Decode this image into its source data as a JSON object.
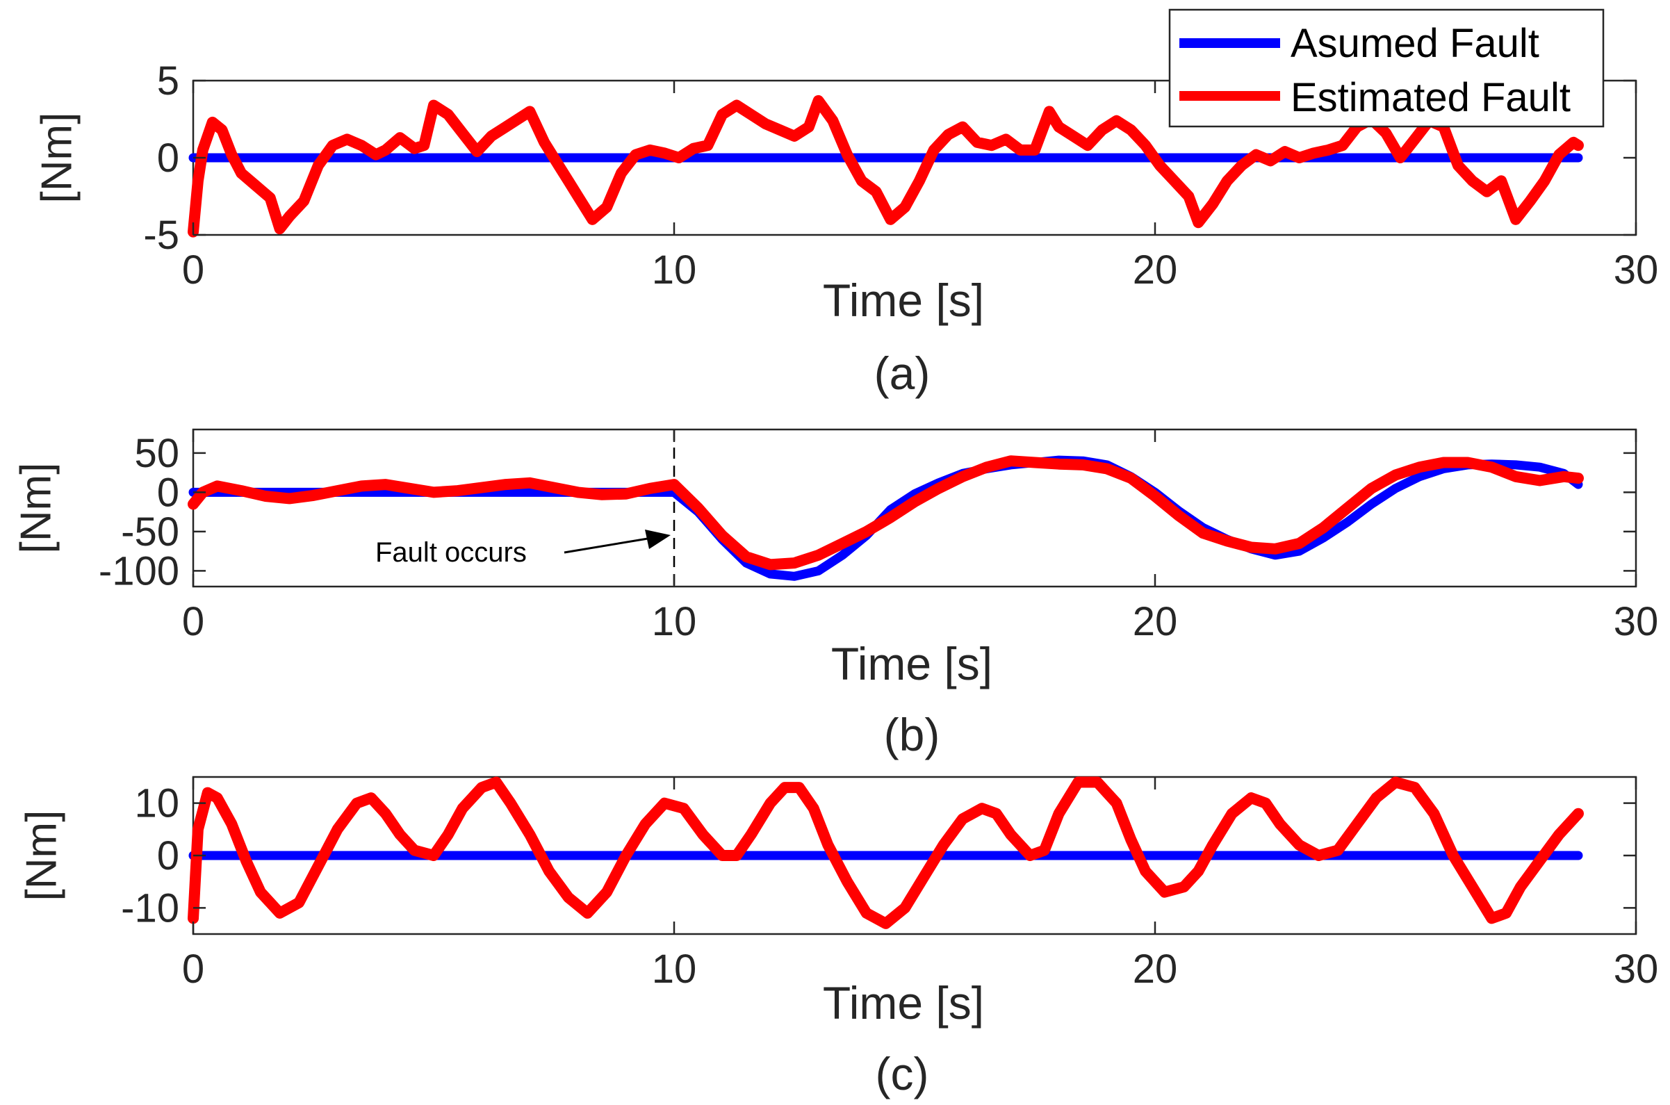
{
  "legend": {
    "entries": [
      {
        "label": "Asumed Fault",
        "color": "#0000ff"
      },
      {
        "label": "Estimated Fault",
        "color": "#ff0000"
      }
    ]
  },
  "chart_data": [
    {
      "type": "line",
      "caption": "(a)",
      "xlabel": "Time [s]",
      "ylabel": "[Nm]",
      "xlim": [
        0,
        30
      ],
      "ylim": [
        -5,
        5
      ],
      "xticks": [
        0,
        10,
        20,
        30
      ],
      "yticks": [
        5,
        0,
        -5
      ],
      "series": [
        {
          "name": "Asumed Fault",
          "color": "#0000ff",
          "x": [
            0,
            28.8
          ],
          "y": [
            0,
            0
          ]
        },
        {
          "name": "Estimated Fault",
          "color": "#ff0000",
          "x": [
            0,
            0.1,
            0.2,
            0.4,
            0.6,
            0.8,
            1.0,
            1.3,
            1.6,
            1.8,
            2.0,
            2.3,
            2.6,
            2.9,
            3.2,
            3.5,
            3.8,
            4.0,
            4.3,
            4.6,
            4.8,
            5.0,
            5.3,
            5.6,
            5.9,
            6.2,
            6.5,
            6.8,
            7.0,
            7.3,
            7.6,
            7.8,
            8.0,
            8.3,
            8.6,
            8.9,
            9.2,
            9.5,
            9.8,
            10.1,
            10.4,
            10.7,
            11.0,
            11.3,
            11.6,
            11.9,
            12.2,
            12.5,
            12.8,
            13.0,
            13.3,
            13.6,
            13.9,
            14.2,
            14.5,
            14.8,
            15.1,
            15.4,
            15.7,
            16.0,
            16.3,
            16.6,
            16.9,
            17.2,
            17.5,
            17.8,
            18.0,
            18.3,
            18.6,
            18.9,
            19.2,
            19.5,
            19.8,
            20.1,
            20.4,
            20.7,
            20.9,
            21.2,
            21.5,
            21.8,
            22.1,
            22.4,
            22.7,
            23.0,
            23.3,
            23.6,
            23.9,
            24.2,
            24.5,
            24.8,
            25.1,
            25.4,
            25.7,
            26.0,
            26.3,
            26.6,
            26.9,
            27.2,
            27.5,
            27.8,
            28.1,
            28.4,
            28.7,
            28.8
          ],
          "y": [
            -4.8,
            -1.5,
            0.5,
            2.3,
            1.8,
            0.2,
            -1.0,
            -1.8,
            -2.6,
            -4.6,
            -3.8,
            -2.8,
            -0.5,
            0.8,
            1.2,
            0.8,
            0.2,
            0.5,
            1.3,
            0.6,
            0.8,
            3.4,
            2.8,
            1.6,
            0.4,
            1.4,
            2.0,
            2.6,
            3.0,
            1.0,
            -0.5,
            -1.5,
            -2.5,
            -4.0,
            -3.2,
            -1.0,
            0.2,
            0.5,
            0.3,
            0.0,
            0.6,
            0.8,
            2.8,
            3.4,
            2.8,
            2.2,
            1.8,
            1.4,
            2.0,
            3.7,
            2.4,
            0.2,
            -1.5,
            -2.2,
            -4.0,
            -3.2,
            -1.5,
            0.5,
            1.5,
            2.0,
            1.0,
            0.8,
            1.2,
            0.5,
            0.5,
            3.0,
            2.0,
            1.4,
            0.8,
            1.8,
            2.4,
            1.8,
            0.8,
            -0.5,
            -1.5,
            -2.5,
            -4.2,
            -3.0,
            -1.5,
            -0.5,
            0.2,
            -0.2,
            0.4,
            0.0,
            0.3,
            0.5,
            0.8,
            2.0,
            2.5,
            1.6,
            0.0,
            1.2,
            2.4,
            2.0,
            -0.5,
            -1.5,
            -2.2,
            -1.5,
            -4.0,
            -2.8,
            -1.5,
            0.2,
            1.0,
            0.8
          ]
        }
      ]
    },
    {
      "type": "line",
      "caption": "(b)",
      "xlabel": "Time [s]",
      "ylabel": "[Nm]",
      "xlim": [
        0,
        30
      ],
      "ylim": [
        -120,
        80
      ],
      "xticks": [
        0,
        10,
        20,
        30
      ],
      "yticks": [
        50,
        0,
        -50,
        -100
      ],
      "annotation": {
        "text": "Fault occurs",
        "x": 10,
        "y": -60
      },
      "series": [
        {
          "name": "Asumed Fault",
          "color": "#0000ff",
          "x": [
            0,
            10,
            10.5,
            11,
            11.5,
            12,
            12.5,
            13,
            13.5,
            14,
            14.5,
            15,
            15.5,
            16,
            16.5,
            17,
            17.5,
            18,
            18.5,
            19,
            19.5,
            20,
            20.5,
            21,
            21.5,
            22,
            22.5,
            23,
            23.5,
            24,
            24.5,
            25,
            25.5,
            26,
            26.5,
            27,
            27.5,
            28,
            28.5,
            28.8
          ],
          "y": [
            0,
            0,
            -25,
            -60,
            -90,
            -104,
            -107,
            -100,
            -80,
            -55,
            -22,
            -2,
            12,
            24,
            30,
            35,
            38,
            41,
            40,
            35,
            20,
            0,
            -24,
            -45,
            -60,
            -72,
            -80,
            -75,
            -58,
            -38,
            -15,
            5,
            20,
            30,
            35,
            36,
            35,
            32,
            24,
            10
          ]
        },
        {
          "name": "Estimated Fault",
          "color": "#ff0000",
          "x": [
            0,
            0.2,
            0.5,
            1.0,
            1.5,
            2.0,
            2.5,
            3.0,
            3.5,
            4.0,
            4.5,
            5.0,
            5.5,
            6.0,
            6.5,
            7.0,
            7.5,
            8.0,
            8.5,
            9.0,
            9.5,
            10.0,
            10.5,
            11.0,
            11.5,
            12.0,
            12.5,
            13.0,
            13.5,
            14.0,
            14.5,
            15.0,
            15.5,
            16.0,
            16.5,
            17.0,
            17.5,
            18.0,
            18.5,
            19.0,
            19.5,
            20.0,
            20.5,
            21.0,
            21.5,
            22.0,
            22.5,
            23.0,
            23.5,
            24.0,
            24.5,
            25.0,
            25.5,
            26.0,
            26.5,
            27.0,
            27.5,
            28.0,
            28.5,
            28.8
          ],
          "y": [
            -15,
            0,
            8,
            2,
            -5,
            -8,
            -4,
            2,
            8,
            10,
            5,
            0,
            2,
            6,
            10,
            12,
            6,
            0,
            -3,
            -2,
            5,
            10,
            -20,
            -55,
            -82,
            -92,
            -90,
            -80,
            -65,
            -50,
            -32,
            -12,
            5,
            20,
            32,
            40,
            38,
            36,
            35,
            30,
            18,
            -5,
            -30,
            -52,
            -62,
            -70,
            -72,
            -65,
            -45,
            -20,
            5,
            22,
            32,
            38,
            38,
            32,
            20,
            15,
            20,
            18
          ]
        }
      ]
    },
    {
      "type": "line",
      "caption": "(c)",
      "xlabel": "Time [s]",
      "ylabel": "[Nm]",
      "xlim": [
        0,
        30
      ],
      "ylim": [
        -15,
        15
      ],
      "xticks": [
        0,
        10,
        20,
        30
      ],
      "yticks": [
        10,
        0,
        -10
      ],
      "series": [
        {
          "name": "Asumed Fault",
          "color": "#0000ff",
          "x": [
            0,
            28.8
          ],
          "y": [
            0,
            0
          ]
        },
        {
          "name": "Estimated Fault",
          "color": "#ff0000",
          "x": [
            0,
            0.1,
            0.3,
            0.5,
            0.8,
            1.1,
            1.4,
            1.8,
            2.2,
            2.6,
            3.0,
            3.4,
            3.7,
            4.0,
            4.3,
            4.6,
            5.0,
            5.3,
            5.6,
            6.0,
            6.3,
            6.6,
            7.0,
            7.4,
            7.8,
            8.2,
            8.6,
            9.0,
            9.4,
            9.8,
            10.2,
            10.6,
            11.0,
            11.3,
            11.6,
            12.0,
            12.3,
            12.6,
            12.9,
            13.2,
            13.6,
            14.0,
            14.4,
            14.8,
            15.2,
            15.6,
            16.0,
            16.4,
            16.7,
            17.0,
            17.4,
            17.7,
            18.0,
            18.4,
            18.8,
            19.2,
            19.5,
            19.8,
            20.2,
            20.6,
            20.9,
            21.2,
            21.6,
            22.0,
            22.3,
            22.6,
            23.0,
            23.4,
            23.8,
            24.2,
            24.6,
            25.0,
            25.4,
            25.8,
            26.2,
            26.6,
            27.0,
            27.3,
            27.6,
            28.0,
            28.4,
            28.8
          ],
          "y": [
            -12,
            5,
            12,
            11,
            6,
            -1,
            -7,
            -11,
            -9,
            -2,
            5,
            10,
            11,
            8,
            4,
            1,
            0,
            4,
            9,
            13,
            14,
            10,
            4,
            -3,
            -8,
            -11,
            -7,
            0,
            6,
            10,
            9,
            4,
            0,
            0,
            4,
            10,
            13,
            13,
            9,
            2,
            -5,
            -11,
            -13,
            -10,
            -4,
            2,
            7,
            9,
            8,
            4,
            0,
            1,
            8,
            14,
            14,
            10,
            3,
            -3,
            -7,
            -6,
            -3,
            2,
            8,
            11,
            10,
            6,
            2,
            0,
            1,
            6,
            11,
            14,
            13,
            8,
            0,
            -6,
            -12,
            -11,
            -6,
            -1,
            4,
            8
          ]
        }
      ]
    }
  ]
}
